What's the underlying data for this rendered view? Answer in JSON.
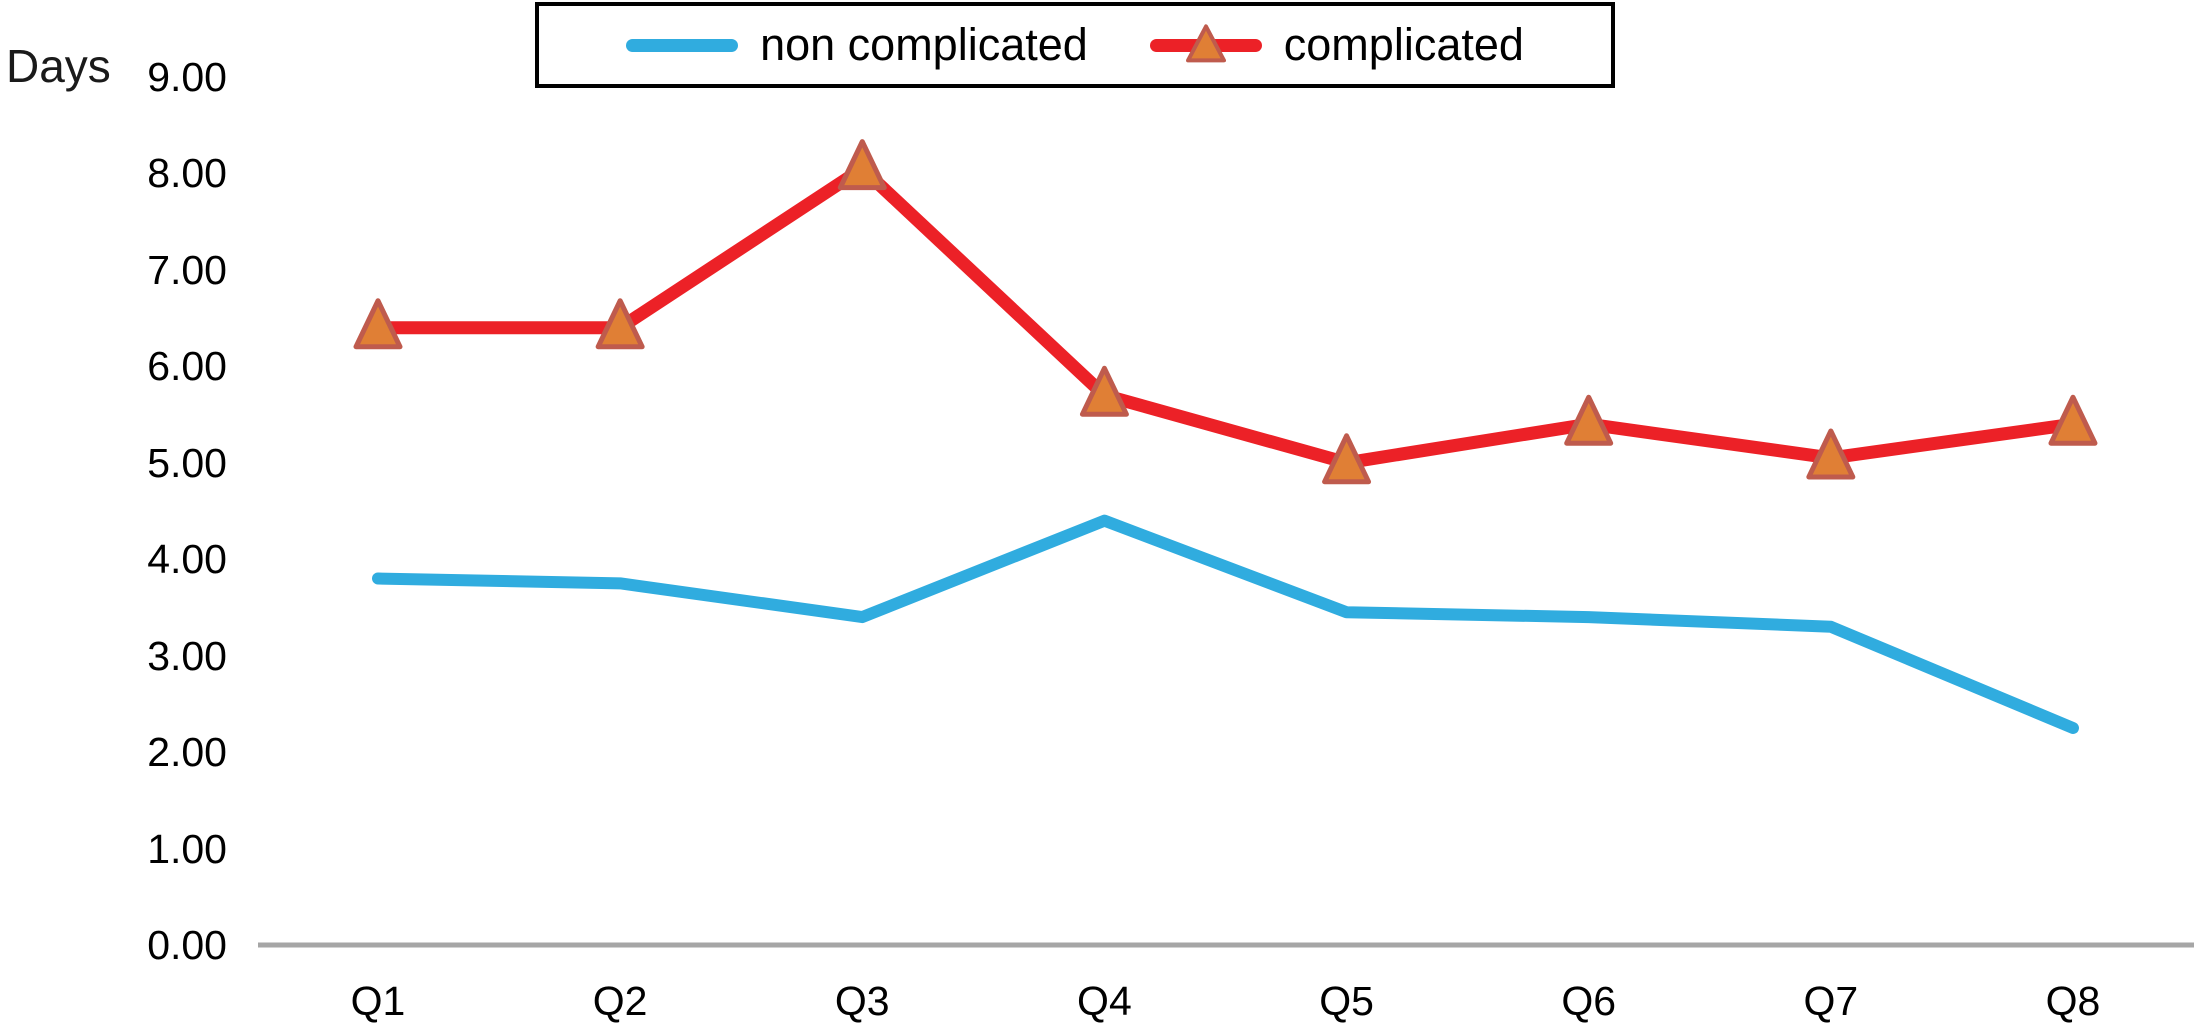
{
  "chart_data": {
    "type": "line",
    "categories": [
      "Q1",
      "Q2",
      "Q3",
      "Q4",
      "Q5",
      "Q6",
      "Q7",
      "Q8"
    ],
    "series": [
      {
        "name": "non complicated",
        "color": "#30ACDF",
        "marker": "none",
        "line_width": 12,
        "values": [
          3.8,
          3.75,
          3.4,
          4.4,
          3.45,
          3.4,
          3.3,
          2.25
        ]
      },
      {
        "name": "complicated",
        "color": "#EC2127",
        "marker": "triangle",
        "marker_fill": "#E07F35",
        "marker_stroke": "#BF5B4D",
        "line_width": 13,
        "values": [
          6.4,
          6.4,
          8.05,
          5.7,
          5.0,
          5.4,
          5.05,
          5.4
        ]
      }
    ],
    "title": "",
    "xlabel": "",
    "ylabel": "Days",
    "ylim": [
      0,
      9
    ],
    "ytick_step": 1,
    "ytick_decimals": 2,
    "grid": false,
    "legend_position": "top-center",
    "legend_border_color": "#000000",
    "axis_line_color": "#A6A6A6",
    "text_color": "#000000"
  }
}
